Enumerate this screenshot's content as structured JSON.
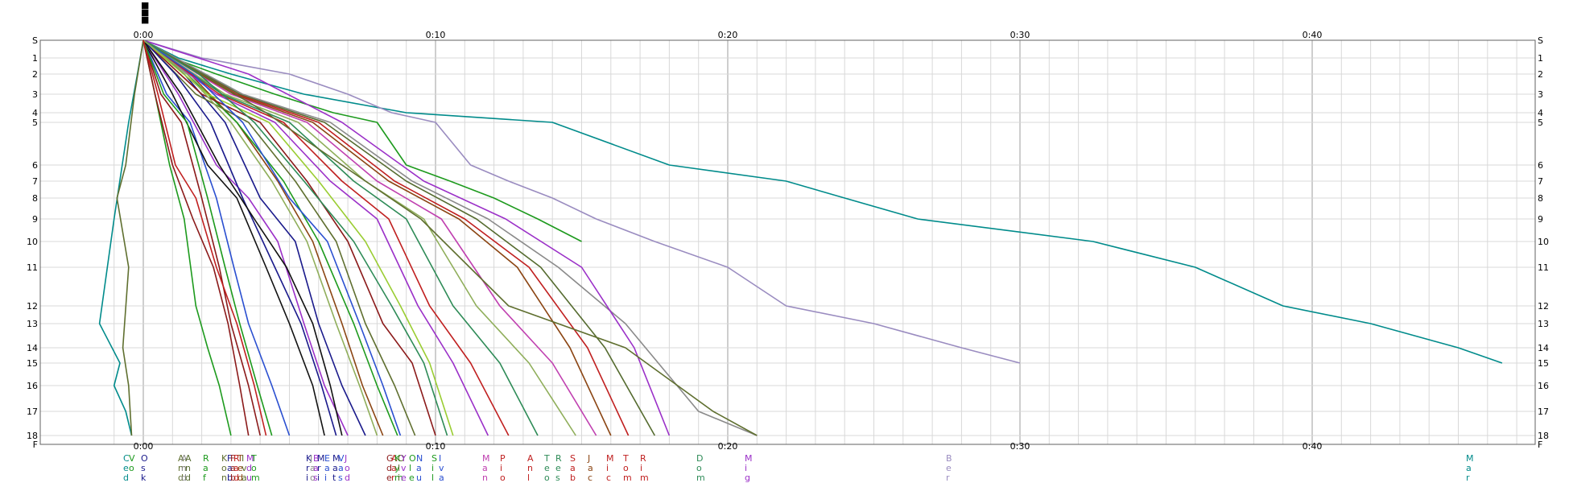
{
  "chart_data": {
    "type": "line",
    "title": "",
    "xlabel": "",
    "ylabel": "",
    "x_unit": "elapsed time (m:ss)",
    "xlim_minutes": [
      -1.5,
      47
    ],
    "x_major_ticks": [
      "0:00",
      "0:10",
      "0:20",
      "0:30",
      "0:40"
    ],
    "y_categories": [
      "S",
      "1",
      "2",
      "3",
      "4",
      "5",
      "6",
      "7",
      "8",
      "9",
      "10",
      "11",
      "12",
      "13",
      "14",
      "15",
      "16",
      "17",
      "18",
      "F"
    ],
    "y_label_note": "rows are not equally spaced",
    "grid": true,
    "grid_minor_step_minutes": 1,
    "legend_placement": "bottom, one vertically written name per finish time",
    "top_marker_glyphs": [
      "■",
      "■",
      "■"
    ],
    "colors": {
      "teal": "#008b8b",
      "lavender": "#9a8cc0",
      "green": "#1d9a1d",
      "olive": "#5f6f2f",
      "dark_olive": "#556b2f",
      "gray": "#8a8a8a",
      "purple": "#9b30c8",
      "maroon": "#8b1a1a",
      "brown": "#8b4513",
      "navy": "#1a1a8b",
      "blue": "#2a4fd0",
      "black": "#111111",
      "light_green": "#9acd32",
      "light_olive": "#8fae5a",
      "sea_green": "#2e8b57",
      "red": "#c02020",
      "magenta": "#c040b0"
    },
    "legend_names": [
      {
        "text": "Ced",
        "color": "teal"
      },
      {
        "text": "Vo",
        "color": "green"
      },
      {
        "text": "Osk",
        "color": "navy"
      },
      {
        "text": "Amd",
        "color": "olive"
      },
      {
        "text": "And",
        "color": "gray"
      },
      {
        "text": "And",
        "color": "dark_olive"
      },
      {
        "text": "Raf",
        "color": "green"
      },
      {
        "text": "Kon",
        "color": "olive"
      },
      {
        "text": "Fab",
        "color": "navy"
      },
      {
        "text": "Fab",
        "color": "maroon"
      },
      {
        "text": "Rad",
        "color": "red"
      },
      {
        "text": "Ted",
        "color": "brown"
      },
      {
        "text": "Iva",
        "color": "olive"
      },
      {
        "text": "Mdu",
        "color": "purple"
      },
      {
        "text": "Tom",
        "color": "green"
      },
      {
        "text": "Kri",
        "color": "navy"
      },
      {
        "text": "Jao",
        "color": "gray"
      },
      {
        "text": "Bas",
        "color": "purple"
      },
      {
        "text": "Mri",
        "color": "navy"
      },
      {
        "text": "Eai",
        "color": "blue"
      },
      {
        "text": "Mat",
        "color": "navy"
      },
      {
        "text": "Vas",
        "color": "blue"
      },
      {
        "text": "Jod",
        "color": "purple"
      },
      {
        "text": "Gde",
        "color": "maroon"
      },
      {
        "text": "Aar",
        "color": "red"
      },
      {
        "text": "Kym",
        "color": "green"
      },
      {
        "text": "Oli",
        "color": "olive"
      },
      {
        "text": "Yve",
        "color": "purple"
      },
      {
        "text": "Ole",
        "color": "green"
      },
      {
        "text": "Nau",
        "color": "blue"
      },
      {
        "text": "Sil",
        "color": "green"
      },
      {
        "text": "Iva",
        "color": "blue"
      },
      {
        "text": "Man",
        "color": "magenta"
      },
      {
        "text": "Pio",
        "color": "red"
      },
      {
        "text": "Anl",
        "color": "red"
      },
      {
        "text": "Teo",
        "color": "sea_green"
      },
      {
        "text": "Res",
        "color": "sea_green"
      },
      {
        "text": "Sab",
        "color": "red"
      },
      {
        "text": "Jac",
        "color": "brown"
      },
      {
        "text": "Mic",
        "color": "red"
      },
      {
        "text": "Tom",
        "color": "red"
      },
      {
        "text": "Rim",
        "color": "red"
      },
      {
        "text": "Dom",
        "color": "sea_green"
      },
      {
        "text": "Mig",
        "color": "purple"
      },
      {
        "text": "Ber",
        "color": "lavender"
      },
      {
        "text": "Mar",
        "color": "teal"
      }
    ],
    "series": [
      {
        "color": "teal",
        "x": [
          0,
          1.2,
          3.0,
          5.5,
          9.0,
          14.0,
          18.0,
          22.0,
          24.0,
          26.5,
          32.5,
          36.0,
          39.0,
          42.0,
          45.0,
          46.5
        ],
        "y": [
          0,
          1,
          2,
          3,
          4,
          5,
          6,
          7,
          8,
          9,
          10,
          11,
          12,
          13,
          14,
          15
        ]
      },
      {
        "color": "lavender",
        "x": [
          0,
          2.0,
          5.0,
          7.0,
          8.5,
          10.0,
          11.2,
          12.5,
          14.0,
          15.5,
          17.5,
          20.0,
          22.0,
          25.0,
          28.0,
          30.0
        ],
        "y": [
          0,
          1,
          2,
          3,
          4,
          5,
          6,
          7,
          8,
          9,
          10,
          11,
          12,
          13,
          14,
          15
        ]
      },
      {
        "color": "green",
        "x": [
          0,
          1.0,
          2.5,
          4.5,
          6.5,
          8.0,
          9.0,
          10.5,
          12.0,
          13.5,
          15.0
        ],
        "y": [
          0,
          1,
          2,
          3,
          4,
          5,
          6,
          7,
          8,
          9,
          10
        ]
      },
      {
        "color": "teal",
        "x": [
          0,
          -0.2,
          -0.5,
          -1.0,
          -1.5,
          -0.8,
          -1.0,
          -0.6,
          -0.4
        ],
        "y": [
          0,
          2,
          5,
          9,
          13,
          15,
          16,
          17,
          18
        ]
      },
      {
        "color": "olive",
        "x": [
          0,
          -0.3,
          -0.6,
          -0.9,
          -0.5,
          -0.7,
          -0.5,
          -0.4
        ],
        "y": [
          0,
          3,
          6,
          8,
          11,
          14,
          16,
          18
        ]
      },
      {
        "color": "green",
        "x": [
          0,
          0.4,
          0.9,
          1.4,
          1.8,
          2.2,
          2.6,
          3.0
        ],
        "y": [
          0,
          3,
          6,
          9,
          12,
          14,
          16,
          18
        ]
      },
      {
        "color": "maroon",
        "x": [
          0,
          0.6,
          1.3,
          2.0,
          2.6,
          3.0,
          3.6,
          4.0
        ],
        "y": [
          0,
          3,
          5,
          8,
          11,
          13,
          16,
          18
        ]
      },
      {
        "color": "blue",
        "x": [
          0,
          0.8,
          1.6,
          2.5,
          3.1,
          3.6,
          4.4,
          5.0
        ],
        "y": [
          0,
          3,
          5,
          8,
          11,
          13,
          16,
          18
        ]
      },
      {
        "color": "black",
        "x": [
          0,
          1.0,
          2.2,
          3.2,
          4.2,
          5.0,
          5.8,
          6.2
        ],
        "y": [
          0,
          3,
          6,
          8,
          11,
          13,
          16,
          18
        ]
      },
      {
        "color": "purple",
        "x": [
          0,
          1.2,
          2.5,
          3.6,
          4.6,
          5.5,
          6.2,
          7.0
        ],
        "y": [
          0,
          3,
          6,
          8,
          10,
          13,
          16,
          18
        ]
      },
      {
        "color": "navy",
        "x": [
          0,
          1.4,
          2.8,
          4.0,
          5.2,
          6.0,
          6.8,
          7.6
        ],
        "y": [
          0,
          2,
          5,
          8,
          10,
          13,
          16,
          18
        ]
      },
      {
        "color": "brown",
        "x": [
          0,
          1.6,
          3.2,
          4.6,
          5.8,
          6.8,
          7.5,
          8.2
        ],
        "y": [
          0,
          2,
          5,
          7,
          10,
          13,
          16,
          18
        ]
      },
      {
        "color": "green",
        "x": [
          0,
          1.5,
          3.2,
          4.8,
          6.0,
          7.2,
          8.0,
          8.7
        ],
        "y": [
          0,
          2,
          5,
          7,
          10,
          13,
          16,
          18
        ]
      },
      {
        "color": "olive",
        "x": [
          0,
          1.8,
          3.6,
          5.2,
          6.6,
          7.6,
          8.6,
          9.3
        ],
        "y": [
          0,
          3,
          5,
          7,
          10,
          13,
          16,
          18
        ]
      },
      {
        "color": "maroon",
        "x": [
          0,
          2.0,
          4.0,
          5.6,
          7.0,
          8.2,
          9.2,
          10.0
        ],
        "y": [
          0,
          3,
          5,
          7,
          10,
          13,
          15,
          18
        ]
      },
      {
        "color": "light_green",
        "x": [
          0,
          2.2,
          4.3,
          6.0,
          7.6,
          8.8,
          9.8,
          10.6
        ],
        "y": [
          0,
          3,
          5,
          7,
          10,
          12,
          15,
          18
        ]
      },
      {
        "color": "purple",
        "x": [
          0,
          2.5,
          4.5,
          6.4,
          8.0,
          9.4,
          10.6,
          11.8
        ],
        "y": [
          0,
          3,
          5,
          7,
          9,
          12,
          15,
          18
        ]
      },
      {
        "color": "red",
        "x": [
          0,
          2.6,
          4.8,
          6.8,
          8.4,
          9.8,
          11.2,
          12.5
        ],
        "y": [
          0,
          3,
          5,
          7,
          9,
          12,
          15,
          18
        ]
      },
      {
        "color": "sea_green",
        "x": [
          0,
          2.7,
          5.0,
          7.2,
          9.0,
          10.6,
          12.2,
          13.5
        ],
        "y": [
          0,
          3,
          5,
          7,
          9,
          12,
          15,
          18
        ]
      },
      {
        "color": "light_olive",
        "x": [
          0,
          2.8,
          5.3,
          7.6,
          9.6,
          11.4,
          13.2,
          14.8
        ],
        "y": [
          0,
          3,
          5,
          7,
          9,
          12,
          15,
          18
        ]
      },
      {
        "color": "magenta",
        "x": [
          0,
          3.0,
          5.6,
          8.0,
          10.2,
          12.2,
          14.0,
          15.5
        ],
        "y": [
          0,
          3,
          5,
          7,
          9,
          12,
          15,
          18
        ]
      },
      {
        "color": "brown",
        "x": [
          0,
          3.1,
          5.8,
          8.4,
          10.8,
          12.8,
          14.6,
          16.0
        ],
        "y": [
          0,
          3,
          5,
          7,
          9,
          11,
          14,
          18
        ]
      },
      {
        "color": "red",
        "x": [
          0,
          3.2,
          6.0,
          8.6,
          11.0,
          13.2,
          15.2,
          16.6
        ],
        "y": [
          0,
          3,
          5,
          7,
          9,
          11,
          14,
          18
        ]
      },
      {
        "color": "dark_olive",
        "x": [
          0,
          3.3,
          6.2,
          9.0,
          11.4,
          13.6,
          15.8,
          17.5
        ],
        "y": [
          0,
          3,
          5,
          7,
          9,
          11,
          14,
          18
        ]
      },
      {
        "color": "gray",
        "x": [
          0,
          3.4,
          6.4,
          9.2,
          11.8,
          14.2,
          16.5,
          19.0,
          21.0
        ],
        "y": [
          0,
          3,
          5,
          7,
          9,
          11,
          13,
          17,
          18
        ]
      },
      {
        "color": "purple",
        "x": [
          0,
          3.6,
          6.8,
          9.6,
          12.4,
          15.0,
          16.8,
          18.0
        ],
        "y": [
          0,
          2,
          5,
          7,
          9,
          11,
          14,
          18
        ]
      },
      {
        "color": "olive",
        "x": [
          0,
          2.0,
          4.2,
          6.8,
          9.5,
          12.5,
          16.5,
          19.5,
          21.0
        ],
        "y": [
          0,
          2,
          4,
          6,
          9,
          12,
          14,
          17,
          18
        ]
      },
      {
        "color": "navy",
        "x": [
          0,
          1.1,
          2.3,
          3.4,
          4.5,
          5.4,
          6.1,
          6.6
        ],
        "y": [
          0,
          2,
          5,
          8,
          11,
          13,
          16,
          18
        ]
      },
      {
        "color": "green",
        "x": [
          0,
          0.7,
          1.5,
          2.2,
          2.8,
          3.3,
          3.9,
          4.4
        ],
        "y": [
          0,
          3,
          5,
          8,
          11,
          13,
          16,
          18
        ]
      },
      {
        "color": "black",
        "x": [
          0,
          1.3,
          2.6,
          3.8,
          4.9,
          5.8,
          6.4,
          6.8
        ],
        "y": [
          0,
          3,
          6,
          9,
          11,
          13,
          16,
          18
        ]
      },
      {
        "color": "blue",
        "x": [
          0,
          1.7,
          3.4,
          5.0,
          6.3,
          7.4,
          8.2,
          8.8
        ],
        "y": [
          0,
          2,
          5,
          8,
          10,
          13,
          16,
          18
        ]
      },
      {
        "color": "maroon",
        "x": [
          0,
          0.4,
          1.0,
          1.7,
          2.4,
          2.9,
          3.3,
          3.6
        ],
        "y": [
          0,
          3,
          6,
          9,
          11,
          13,
          16,
          18
        ]
      },
      {
        "color": "sea_green",
        "x": [
          0,
          1.9,
          3.8,
          5.5,
          7.2,
          8.5,
          9.6,
          10.4
        ],
        "y": [
          0,
          2,
          5,
          7,
          10,
          12,
          15,
          18
        ]
      },
      {
        "color": "light_olive",
        "x": [
          0,
          1.5,
          3.0,
          4.4,
          5.6,
          6.6,
          7.4,
          8.0
        ],
        "y": [
          0,
          2,
          5,
          7,
          10,
          13,
          16,
          18
        ]
      },
      {
        "color": "red",
        "x": [
          0,
          0.5,
          1.1,
          1.8,
          2.5,
          3.2,
          3.8,
          4.2
        ],
        "y": [
          0,
          3,
          6,
          8,
          11,
          13,
          16,
          18
        ]
      }
    ]
  }
}
